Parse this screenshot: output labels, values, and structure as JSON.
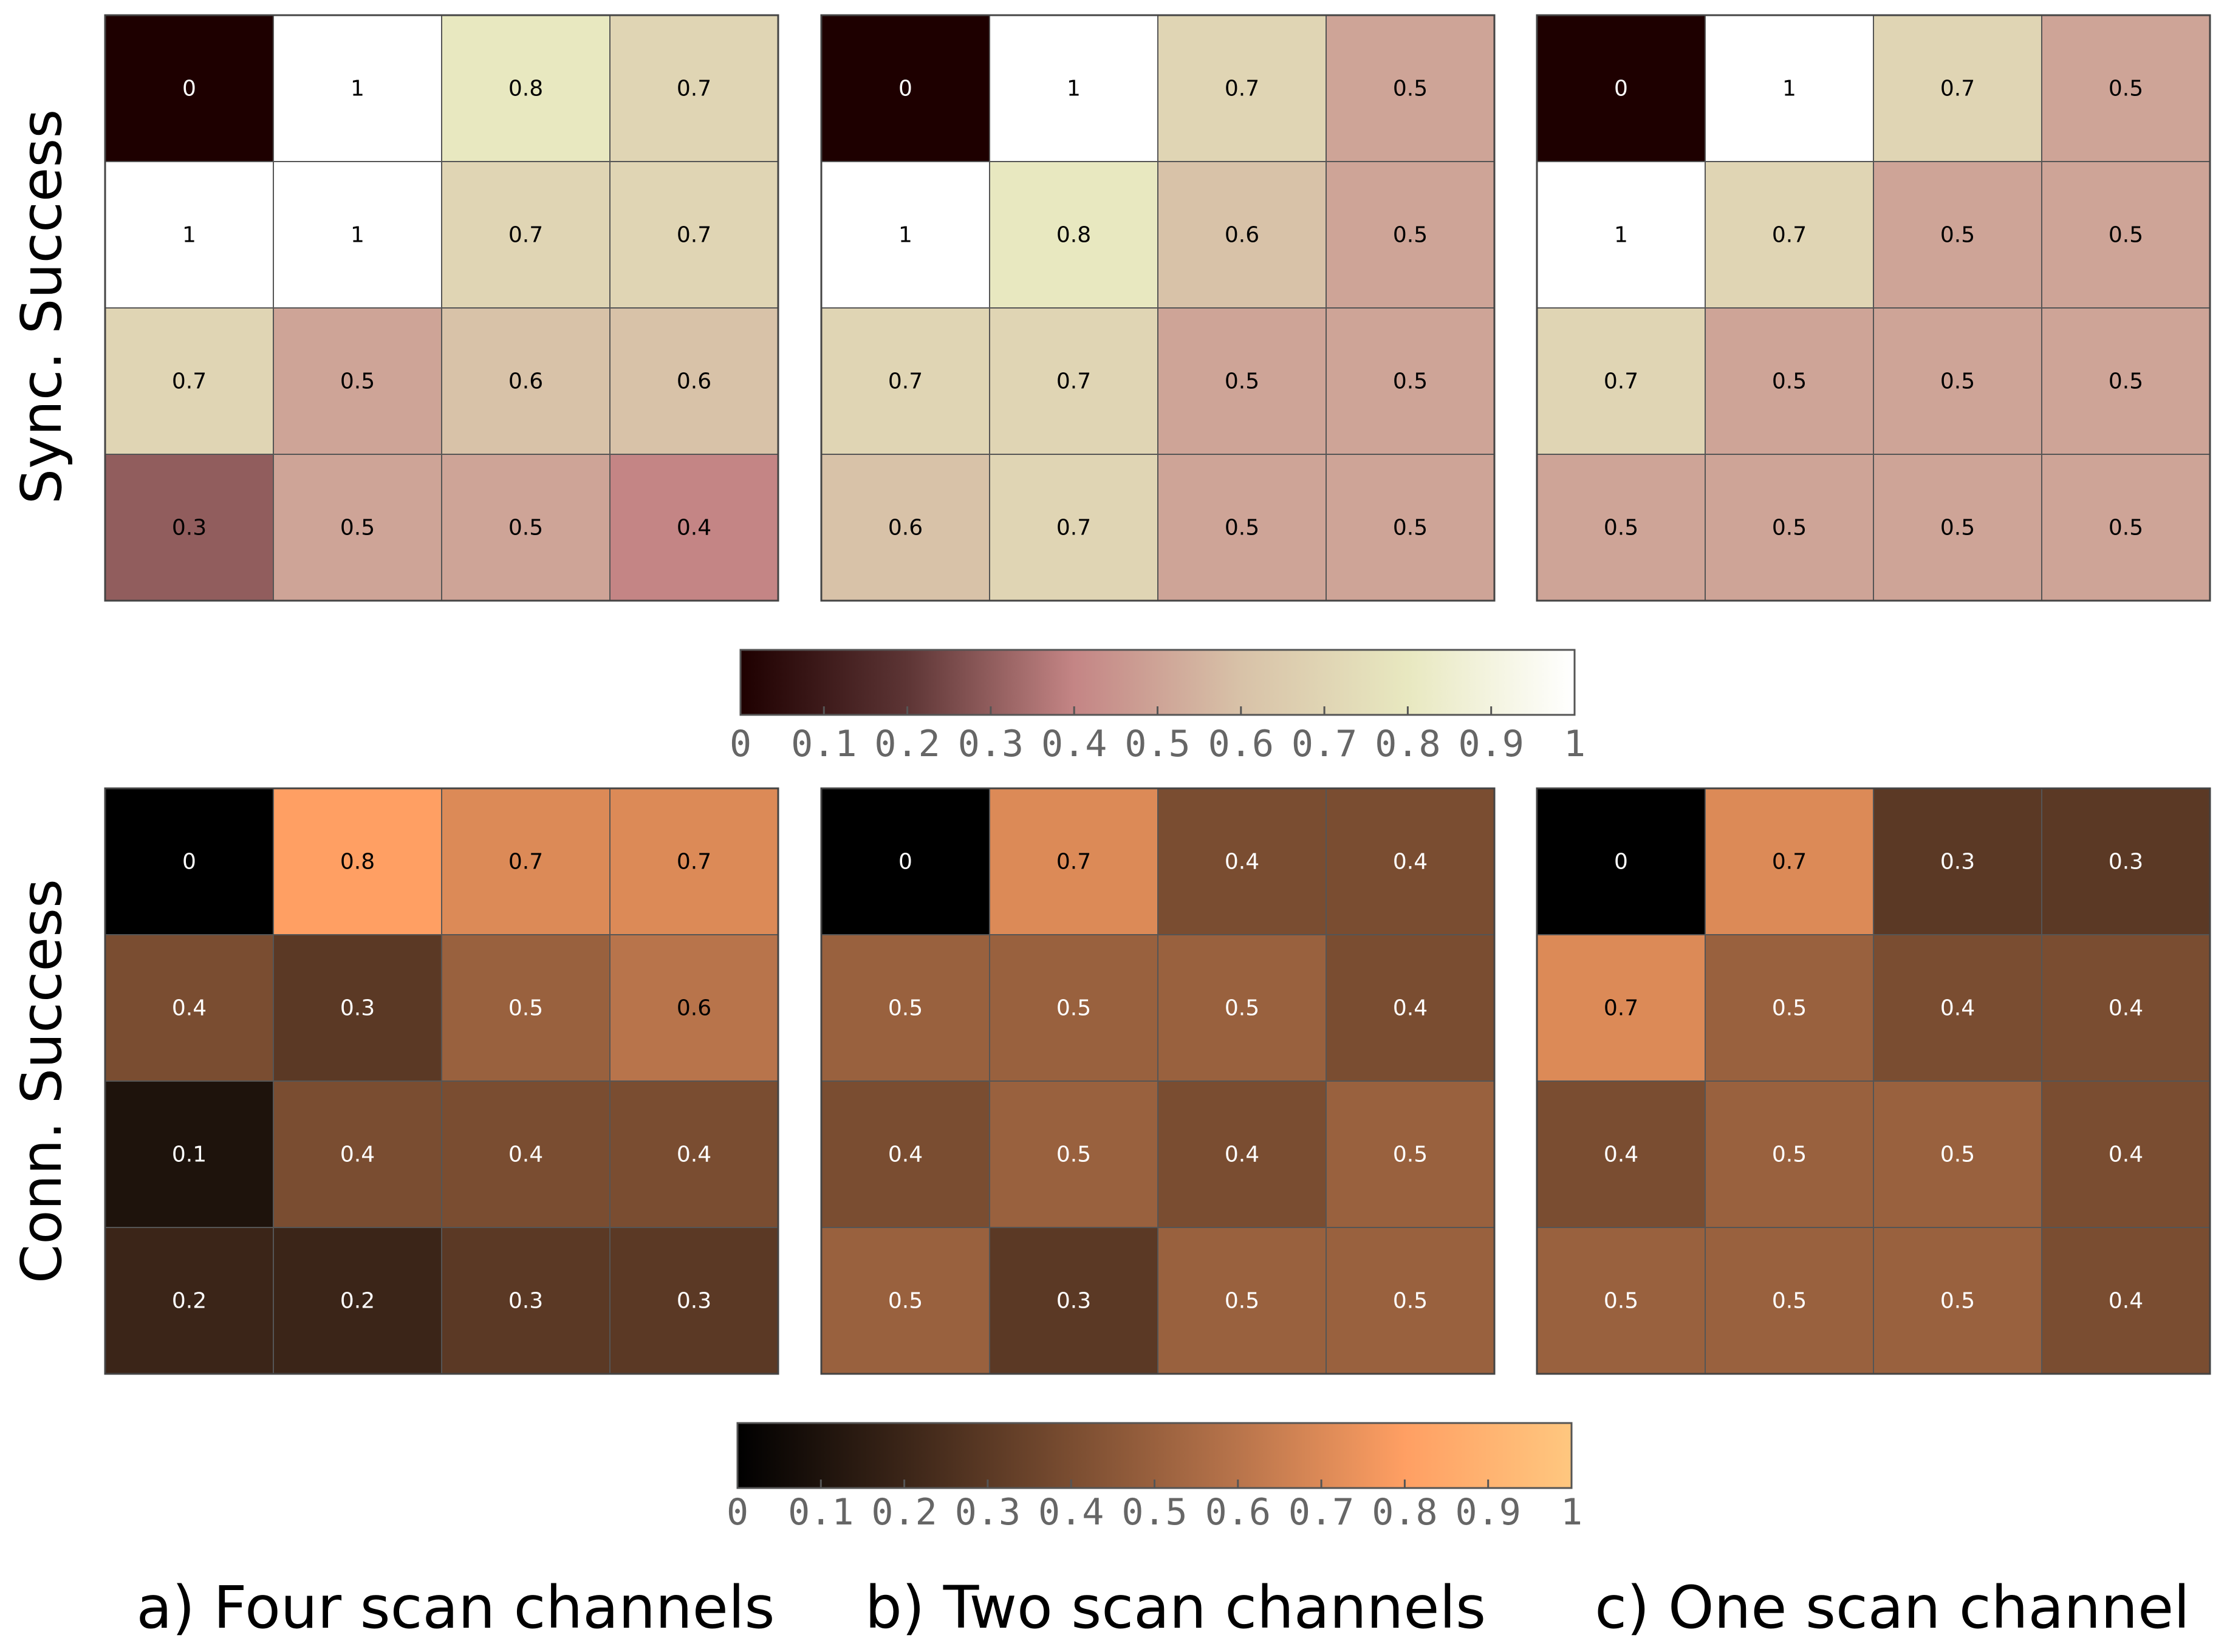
{
  "chart_data": {
    "type": "heatmap",
    "row_titles": [
      "Sync. Success",
      "Conn. Success"
    ],
    "column_captions": [
      "a) Four scan channels",
      "b) Two scan channels",
      "c) One scan channel"
    ],
    "colorbars": [
      {
        "colormap": "pink",
        "range": [
          0,
          1
        ],
        "ticks": [
          "0",
          "0.1",
          "0.2",
          "0.3",
          "0.4",
          "0.5",
          "0.6",
          "0.7",
          "0.8",
          "0.9",
          "1"
        ],
        "stops": [
          "#1e0000",
          "#5d3535",
          "#c48585",
          "#d8c2a8",
          "#e8e8c0",
          "#ffffff"
        ]
      },
      {
        "colormap": "copper",
        "range": [
          0,
          1
        ],
        "ticks": [
          "0",
          "0.1",
          "0.2",
          "0.3",
          "0.4",
          "0.5",
          "0.6",
          "0.7",
          "0.8",
          "0.9",
          "1"
        ],
        "stops": [
          "#000000",
          "#3b2518",
          "#7a4d31",
          "#b8744b",
          "#ff9f63",
          "#ffc77f"
        ]
      }
    ],
    "panels": [
      {
        "row": 0,
        "col": 0,
        "colorbar": 0,
        "values": [
          [
            "0",
            "1",
            "0.8",
            "0.7"
          ],
          [
            "1",
            "1",
            "0.7",
            "0.7"
          ],
          [
            "0.7",
            "0.5",
            "0.6",
            "0.6"
          ],
          [
            "0.3",
            "0.5",
            "0.5",
            "0.4"
          ]
        ]
      },
      {
        "row": 0,
        "col": 1,
        "colorbar": 0,
        "values": [
          [
            "0",
            "1",
            "0.7",
            "0.5"
          ],
          [
            "1",
            "0.8",
            "0.6",
            "0.5"
          ],
          [
            "0.7",
            "0.7",
            "0.5",
            "0.5"
          ],
          [
            "0.6",
            "0.7",
            "0.5",
            "0.5"
          ]
        ]
      },
      {
        "row": 0,
        "col": 2,
        "colorbar": 0,
        "values": [
          [
            "0",
            "1",
            "0.7",
            "0.5"
          ],
          [
            "1",
            "0.7",
            "0.5",
            "0.5"
          ],
          [
            "0.7",
            "0.5",
            "0.5",
            "0.5"
          ],
          [
            "0.5",
            "0.5",
            "0.5",
            "0.5"
          ]
        ]
      },
      {
        "row": 1,
        "col": 0,
        "colorbar": 1,
        "values": [
          [
            "0",
            "0.8",
            "0.7",
            "0.7"
          ],
          [
            "0.4",
            "0.3",
            "0.5",
            "0.6"
          ],
          [
            "0.1",
            "0.4",
            "0.4",
            "0.4"
          ],
          [
            "0.2",
            "0.2",
            "0.3",
            "0.3"
          ]
        ]
      },
      {
        "row": 1,
        "col": 1,
        "colorbar": 1,
        "values": [
          [
            "0",
            "0.7",
            "0.4",
            "0.4"
          ],
          [
            "0.5",
            "0.5",
            "0.5",
            "0.4"
          ],
          [
            "0.4",
            "0.5",
            "0.4",
            "0.5"
          ],
          [
            "0.5",
            "0.3",
            "0.5",
            "0.5"
          ]
        ]
      },
      {
        "row": 1,
        "col": 2,
        "colorbar": 1,
        "values": [
          [
            "0",
            "0.7",
            "0.3",
            "0.3"
          ],
          [
            "0.7",
            "0.5",
            "0.4",
            "0.4"
          ],
          [
            "0.4",
            "0.5",
            "0.5",
            "0.4"
          ],
          [
            "0.5",
            "0.5",
            "0.5",
            "0.4"
          ]
        ]
      }
    ]
  }
}
